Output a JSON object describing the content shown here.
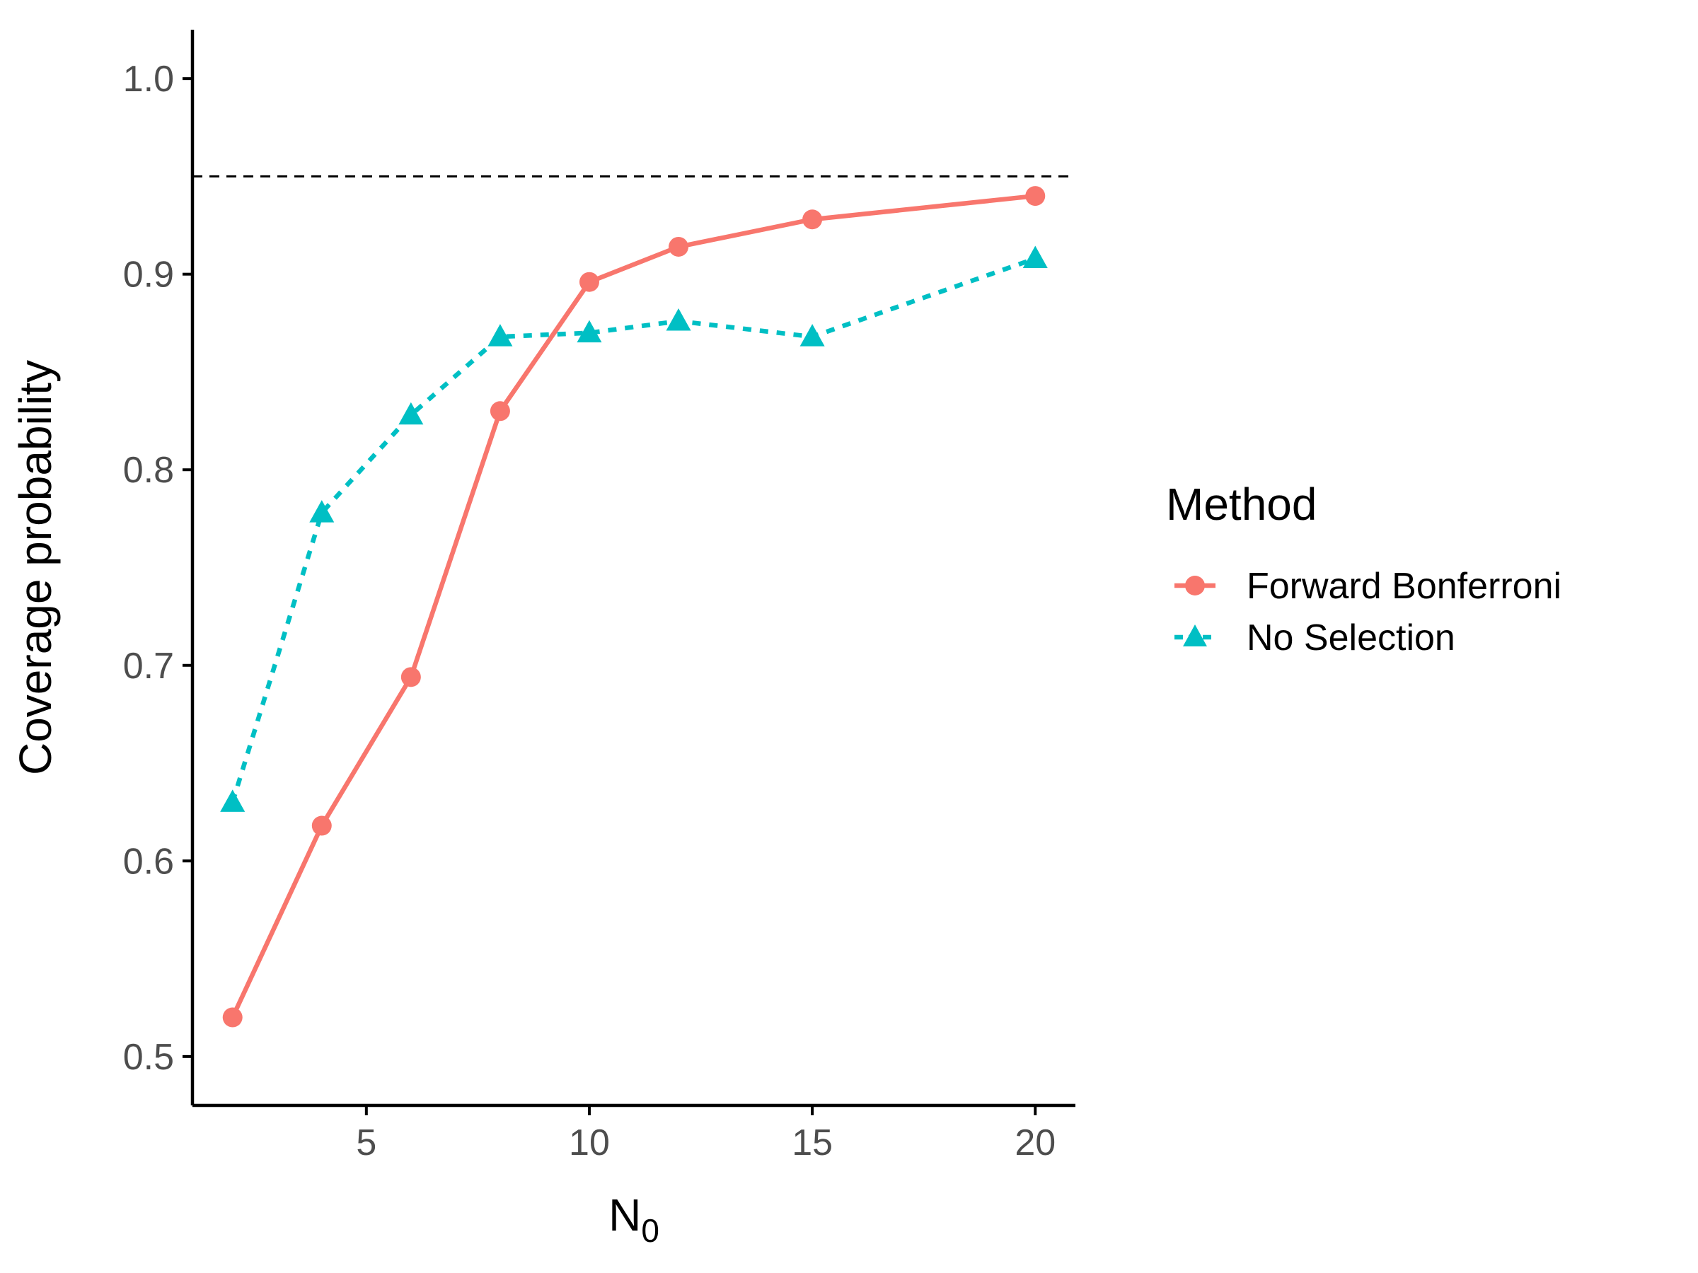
{
  "chart_data": {
    "type": "line",
    "xlabel_main": "N",
    "xlabel_sub": "0",
    "ylabel": "Coverage probability",
    "xlim": [
      1.1,
      20.9
    ],
    "ylim": [
      0.475,
      1.025
    ],
    "xticks": [
      5,
      10,
      15,
      20
    ],
    "yticks": [
      0.5,
      0.6,
      0.7,
      0.8,
      0.9,
      1.0
    ],
    "ytick_labels": [
      "0.5",
      "0.6",
      "0.7",
      "0.8",
      "0.9",
      "1.0"
    ],
    "reference_line": {
      "y": 0.95,
      "style": "dashed",
      "color": "#000000"
    },
    "grid": false,
    "legend": {
      "title": "Method",
      "position": "right"
    },
    "series": [
      {
        "name": "Forward Bonferroni",
        "color": "#F8766D",
        "marker": "circle",
        "line_style": "solid",
        "x": [
          2,
          4,
          6,
          8,
          10,
          12,
          15,
          20
        ],
        "y": [
          0.52,
          0.618,
          0.694,
          0.83,
          0.896,
          0.914,
          0.928,
          0.94
        ]
      },
      {
        "name": "No Selection",
        "color": "#00BFC4",
        "marker": "triangle",
        "line_style": "dashed",
        "x": [
          2,
          4,
          6,
          8,
          10,
          12,
          15,
          20
        ],
        "y": [
          0.63,
          0.778,
          0.828,
          0.868,
          0.87,
          0.876,
          0.868,
          0.908
        ]
      }
    ]
  }
}
